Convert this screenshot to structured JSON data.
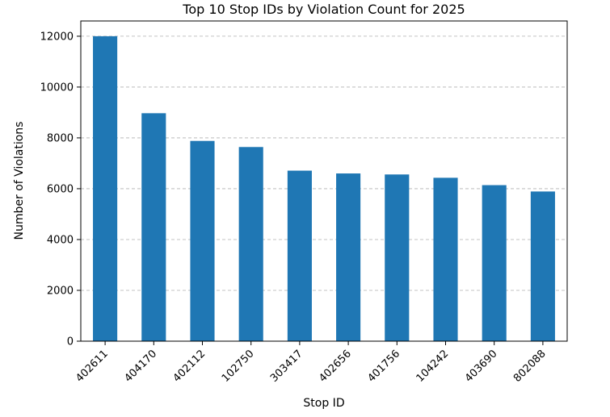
{
  "chart_data": {
    "type": "bar",
    "title": "Top 10 Stop IDs by Violation Count for 2025",
    "xlabel": "Stop ID",
    "ylabel": "Number of Violations",
    "categories": [
      "402611",
      "404170",
      "402112",
      "102750",
      "303417",
      "402656",
      "401756",
      "104242",
      "403690",
      "802088"
    ],
    "values": [
      12000,
      8970,
      7880,
      7640,
      6710,
      6600,
      6560,
      6430,
      6140,
      5890
    ],
    "ylim": [
      0,
      12600
    ],
    "yticks": [
      0,
      2000,
      4000,
      6000,
      8000,
      10000,
      12000
    ],
    "grid": "y-dashed",
    "bar_color": "#1f77b4",
    "xtick_rotation": -45
  }
}
